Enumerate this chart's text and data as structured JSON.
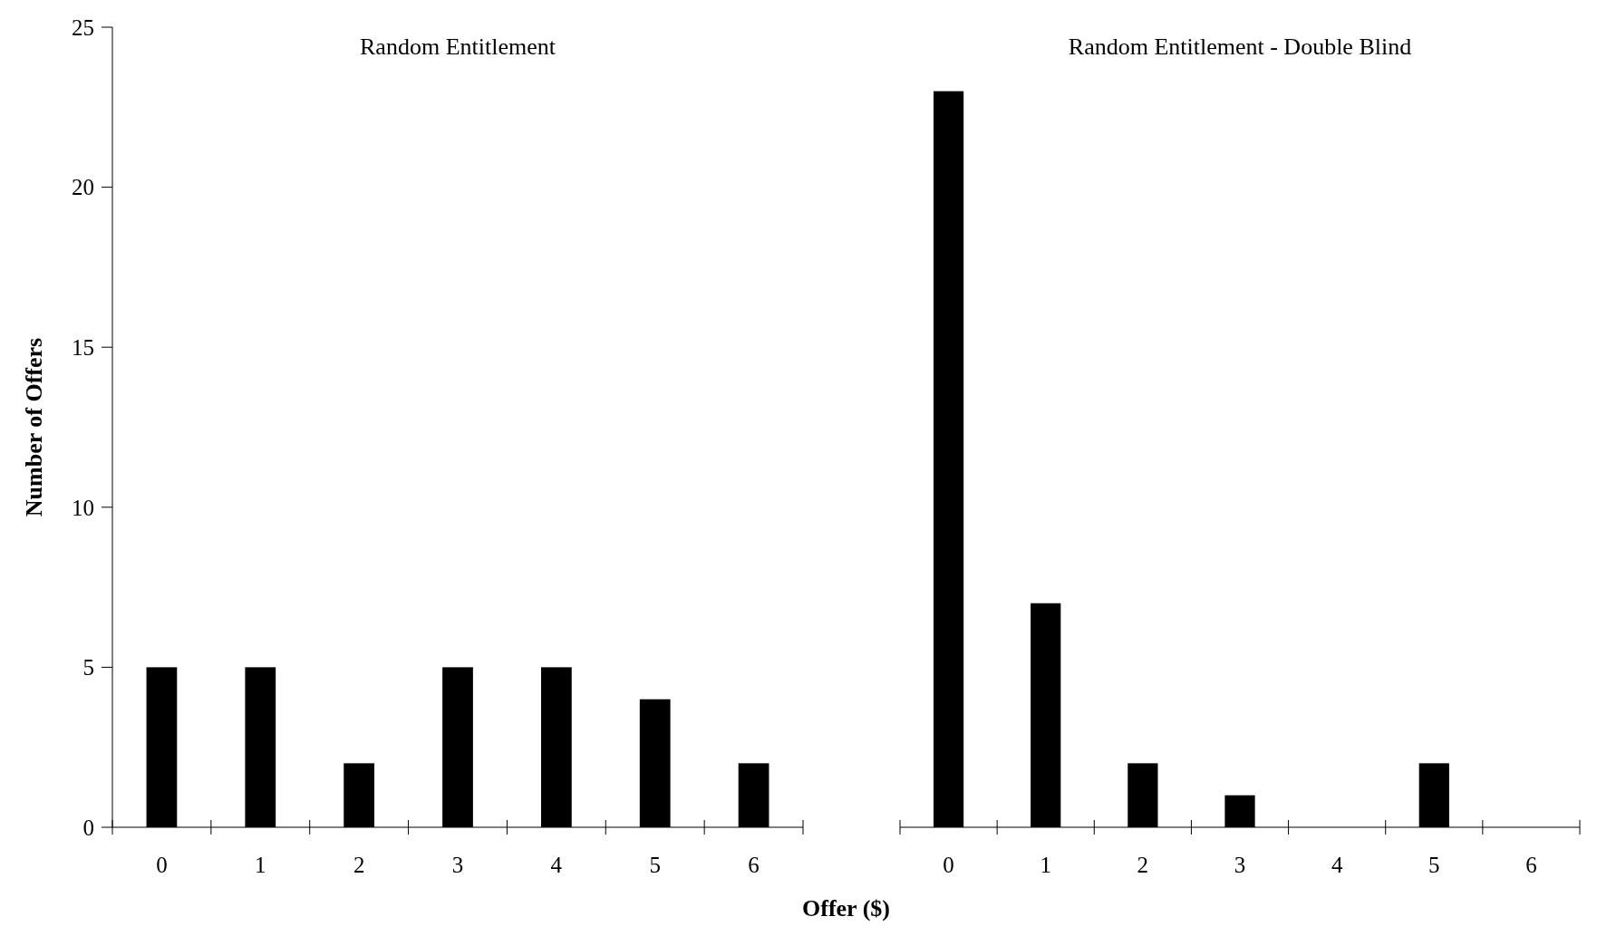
{
  "chart_data": [
    {
      "type": "bar",
      "title": "Random Entitlement",
      "xlabel": "Offer ($)",
      "ylabel": "Number of Offers",
      "categories": [
        "0",
        "1",
        "2",
        "3",
        "4",
        "5",
        "6"
      ],
      "values": [
        5,
        5,
        2,
        5,
        5,
        4,
        2
      ],
      "color": "#000000",
      "ylim": [
        0,
        25
      ],
      "yticks": [
        0,
        5,
        10,
        15,
        20,
        25
      ]
    },
    {
      "type": "bar",
      "title": "Random Entitlement - Double Blind",
      "categories": [
        "0",
        "1",
        "2",
        "3",
        "4",
        "5",
        "6"
      ],
      "values": [
        23,
        7,
        2,
        1,
        0,
        2,
        0
      ],
      "color": "#000000",
      "ylim": [
        0,
        25
      ],
      "tick_labels": "x"
    }
  ]
}
